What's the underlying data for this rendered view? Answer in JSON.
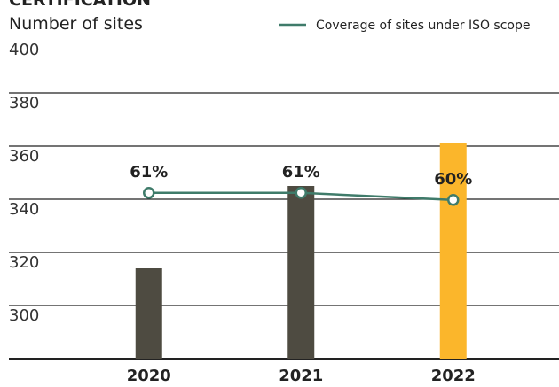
{
  "chart_data": {
    "type": "bar",
    "title": "CERTIFICATION",
    "y_axis_label": "Number of sites",
    "categories": [
      "2020",
      "2021",
      "2022"
    ],
    "series": [
      {
        "name": "Number of sites",
        "type": "bar",
        "values": [
          314,
          345,
          361
        ],
        "colors": [
          "#4e4b41",
          "#4e4b41",
          "#fbb62b"
        ]
      },
      {
        "name": "Coverage of sites under ISO scope",
        "type": "line",
        "axis": "y2",
        "color": "#3f7b6a",
        "values": [
          61,
          61,
          60
        ],
        "value_labels": [
          "61%",
          "61%",
          "60%"
        ]
      }
    ],
    "ylim": [
      280,
      400
    ],
    "yticks": [
      400,
      380,
      360,
      340,
      320,
      300
    ],
    "y2lim": [
      37.6,
      82.6
    ],
    "grid": true,
    "legend": "top-right"
  }
}
